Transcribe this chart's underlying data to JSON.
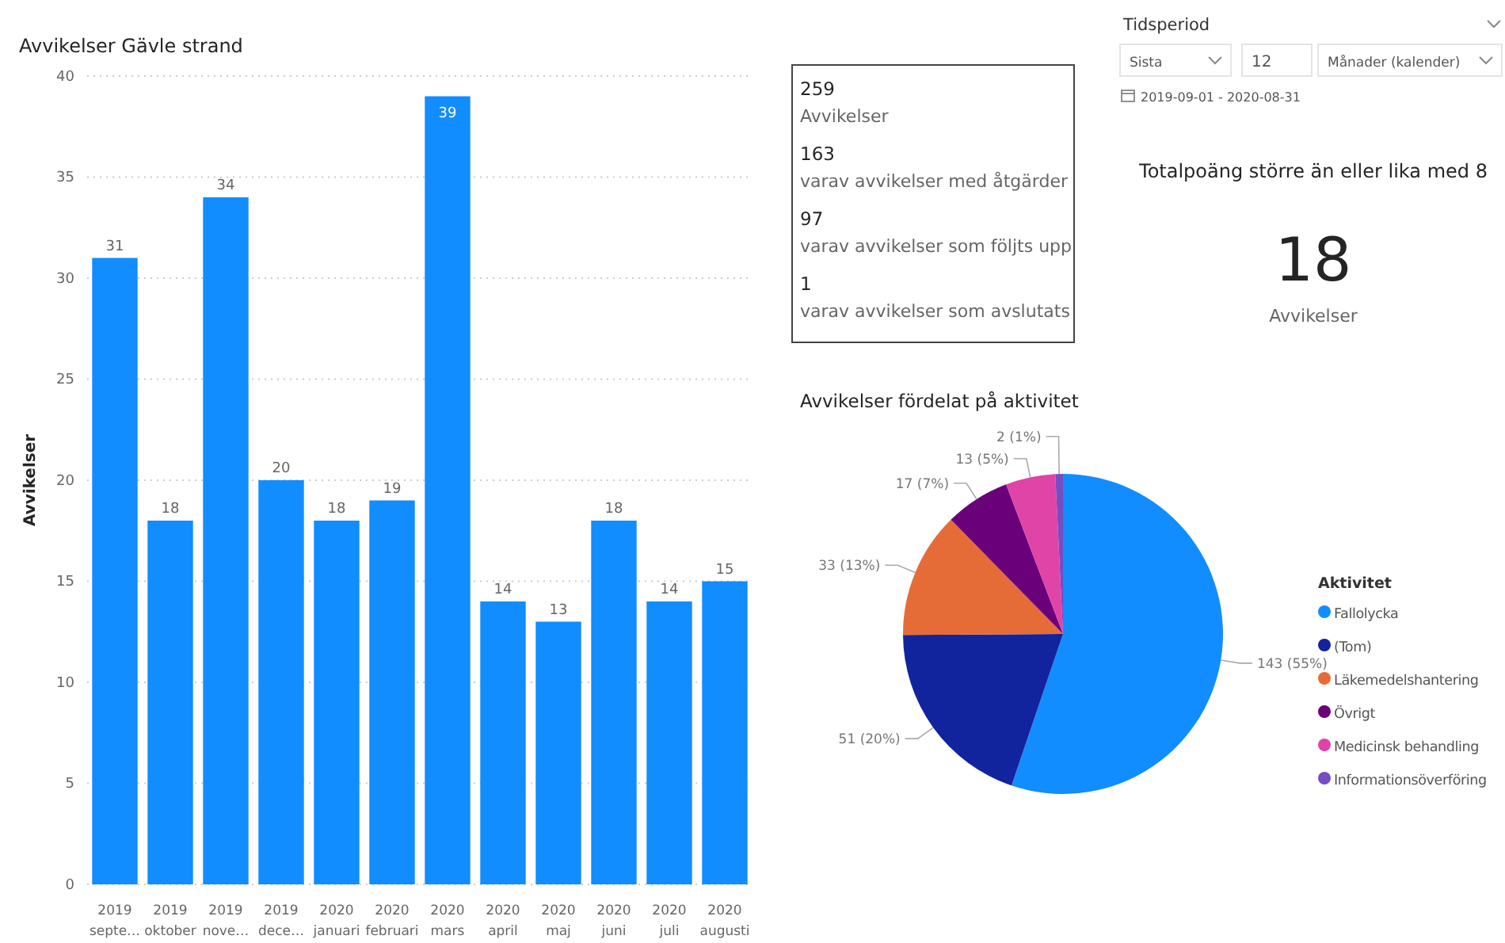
{
  "chart_data": [
    {
      "type": "bar",
      "title": "Avvikelser Gävle strand",
      "ylabel": "Avvikelser",
      "categories": [
        "2019\nsepte…",
        "2019\noktober",
        "2019\nnove…",
        "2019\ndece…",
        "2020\njanuari",
        "2020\nfebruari",
        "2020\nmars",
        "2020\napril",
        "2020\nmaj",
        "2020\njuni",
        "2020\njuli",
        "2020\naugusti"
      ],
      "values": [
        31,
        18,
        34,
        20,
        18,
        19,
        39,
        14,
        13,
        18,
        14,
        15
      ],
      "color": "#118dff",
      "data_labels": true,
      "ylim": [
        0,
        40
      ],
      "yticks": [
        0,
        5,
        10,
        15,
        20,
        25,
        30,
        35,
        40
      ],
      "grid": "y"
    },
    {
      "type": "other",
      "annotations": [
        "259",
        "Avvikelser",
        "163",
        "varav avvikelser med åtgärder",
        "97",
        "varav avvikelser som följts upp",
        "1",
        "varav avvikelser som avslutats"
      ]
    },
    {
      "type": "other",
      "title": "Tidsperiod",
      "annotations": [
        "Sista",
        "12",
        "Månader (kalender)",
        "2019-09-01 - 2020-08-31"
      ]
    },
    {
      "type": "other",
      "title": "Totalpoäng större än eller lika med 8",
      "annotations": [
        "18",
        "Avvikelser"
      ]
    },
    {
      "type": "pie",
      "title": "Avvikelser fördelat på aktivitet",
      "legend_title": "Aktivitet",
      "legend": "right",
      "categories": [
        "Fallolycka",
        "(Tom)",
        "Läkemedelshantering",
        "Övrigt",
        "Medicinsk behandling",
        "Informationsöverföring"
      ],
      "values": [
        143,
        51,
        33,
        17,
        13,
        2
      ],
      "value_labels": [
        "143 (55%)",
        "51 (20%)",
        "33 (13%)",
        "17 (7%)",
        "13 (5%)",
        "2 (1%)"
      ],
      "colors": [
        "#118dff",
        "#12239e",
        "#e66c37",
        "#6b007b",
        "#e044a7",
        "#744ec2"
      ]
    }
  ]
}
